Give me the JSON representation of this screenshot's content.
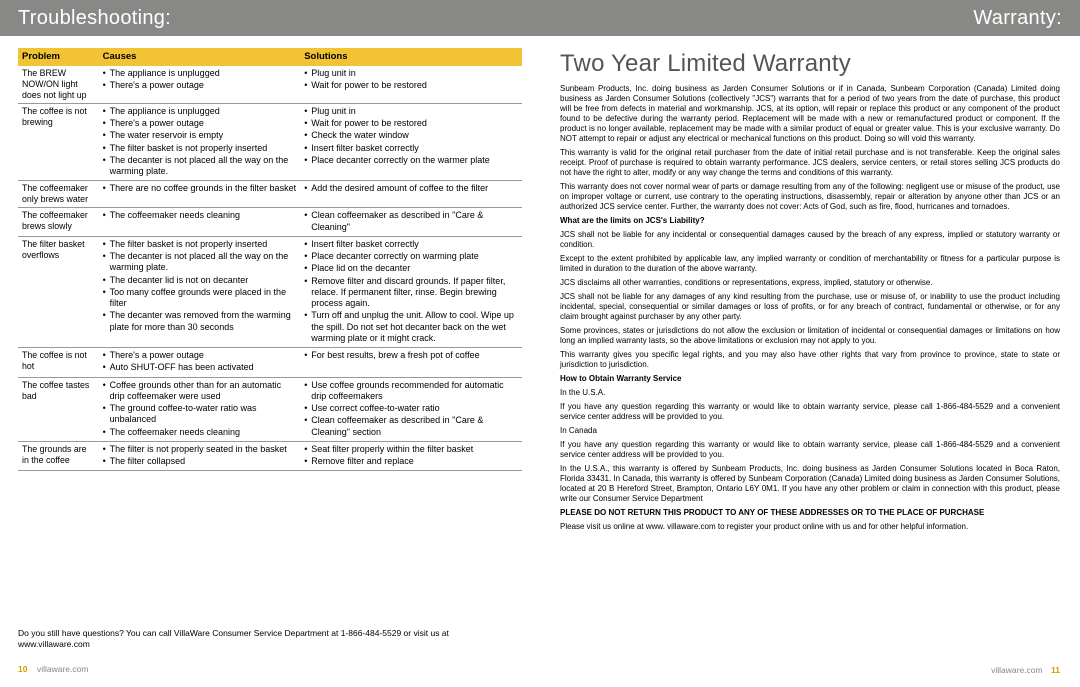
{
  "header_left": "Troubleshooting:",
  "header_right": "Warranty:",
  "table": {
    "cols": [
      "Problem",
      "Causes",
      "Solutions"
    ],
    "rows": [
      {
        "problem": "The BREW NOW/ON light does not light up",
        "causes": [
          "The appliance is unplugged",
          "There's a power outage"
        ],
        "solutions": [
          "Plug unit in",
          "Wait for power to be restored"
        ]
      },
      {
        "problem": "The coffee is not brewing",
        "causes": [
          "The appliance is unplugged",
          "There's a power outage",
          "The water reservoir is empty",
          "The filter basket is not properly inserted",
          "The decanter is not placed all the way on the warming plate."
        ],
        "solutions": [
          "Plug unit in",
          "Wait for power to be restored",
          "Check the water window",
          "Insert filter basket correctly",
          "Place decanter correctly on the warmer plate"
        ]
      },
      {
        "problem": "The coffeemaker only brews water",
        "causes": [
          "There are no coffee grounds in the filter basket"
        ],
        "solutions": [
          "Add the desired amount of coffee to the filter"
        ]
      },
      {
        "problem": "The coffeemaker brews slowly",
        "causes": [
          "The coffeemaker needs cleaning"
        ],
        "solutions": [
          "Clean coffeemaker as described in \"Care & Cleaning\""
        ]
      },
      {
        "problem": "The filter basket overflows",
        "causes": [
          "The filter basket is not properly inserted",
          "The decanter is not placed all the way on the warming plate.",
          "The decanter lid is not on decanter",
          "Too many coffee grounds were placed in the filter",
          "The decanter was removed from the warming plate for more than 30 seconds"
        ],
        "solutions": [
          "Insert filter basket correctly",
          "Place decanter correctly on warming plate",
          "Place lid on the decanter",
          "Remove filter and discard grounds. If paper filter, relace. If permanent filter, rinse. Begin brewing process again.",
          "Turn off and unplug the unit. Allow to cool. Wipe up the spill. Do not set hot decanter back on the wet warming plate or it might crack."
        ]
      },
      {
        "problem": "The coffee is not hot",
        "causes": [
          "There's a power outage",
          "Auto SHUT-OFF has been activated"
        ],
        "solutions": [
          "For best results, brew a fresh pot of coffee"
        ]
      },
      {
        "problem": "The coffee tastes bad",
        "causes": [
          "Coffee grounds other than for an automatic drip coffeemaker were used",
          "The ground coffee-to-water ratio was unbalanced",
          "The coffeemaker needs cleaning"
        ],
        "solutions": [
          "Use coffee grounds recommended for automatic drip coffeemakers",
          "Use correct coffee-to-water ratio",
          "Clean coffeemaker as described in \"Care & Cleaning\" section"
        ]
      },
      {
        "problem": "The grounds are in the coffee",
        "causes": [
          "The filter is not properly seated in the basket",
          "The filter collapsed"
        ],
        "solutions": [
          "Seat filter properly within the filter basket",
          "Remove filter and replace"
        ]
      }
    ]
  },
  "questions": "Do you still have questions? You can call VillaWare Consumer Service Department at 1-866-484-5529 or visit us at www.villaware.com",
  "left_page_num": "10",
  "left_website": "villaware.com",
  "warranty_title": "Two Year Limited Warranty",
  "warranty": {
    "p1": "Sunbeam Products, Inc. doing business as Jarden Consumer Solutions or if in Canada, Sunbeam Corporation (Canada) Limited doing business as Jarden Consumer Solutions (collectively \"JCS\") warrants that for a period of two years from the date of purchase, this product will be free from defects in material and workmanship. JCS, at its option, will repair or replace this product or any component of the product found to be defective during the warranty period. Replacement will be made with a new or remanufactured product or component. If the product is no longer available, replacement may be made with a similar product of equal or greater value. This is your exclusive warranty. Do NOT attempt to repair or adjust any electrical or mechanical functions on this product. Doing so will void this warranty.",
    "p2": "This warranty is valid for the original retail purchaser from the date of initial retail purchase and is not transferable. Keep the original sales receipt. Proof of purchase is required to obtain warranty performance. JCS dealers, service centers, or retail stores selling JCS products do not have the right to alter, modify or any way change the terms and conditions of this warranty.",
    "p3": "This warranty does not cover normal wear of parts or damage resulting from any of the following: negligent use or misuse of the product, use on improper voltage or current, use contrary to the operating instructions, disassembly, repair or alteration by anyone other than JCS or an authorized JCS service center. Further, the warranty does not cover: Acts of God, such as fire, flood, hurricanes and tornadoes.",
    "h1": "What are the limits on JCS's Liability?",
    "p4": "JCS shall not be liable for any incidental or consequential damages caused by the breach of any express, implied or statutory warranty or condition.",
    "p5": "Except to the extent prohibited by applicable law, any implied warranty or condition of merchantability or fitness for a particular purpose is limited in duration to the duration of the above warranty.",
    "p6": "JCS disclaims all other warranties, conditions or representations, express, implied, statutory or otherwise.",
    "p7": "JCS shall not be liable for any damages of any kind resulting from the purchase, use or misuse of, or inability to use the product including incidental, special, consequential or similar damages or loss of profits, or for any breach of contract, fundamental or otherwise, or for any claim brought against purchaser by any other party.",
    "p8": "Some provinces, states or jurisdictions do not allow the exclusion or limitation of incidental or consequential damages or limitations on how long an implied warranty lasts, so the above limitations or exclusion may not apply to you.",
    "p9": "This warranty gives you specific legal rights, and you may also have other rights that vary from province to province, state to state or jurisdiction to jurisdiction.",
    "h2": "How to Obtain Warranty Service",
    "p10": "In the U.S.A.",
    "p11": "If you have any question regarding this warranty or would like to obtain warranty service, please call 1-866-484-5529 and a convenient service center address will be provided to you.",
    "p12": "In Canada",
    "p13": "If you have any question regarding this warranty or would like to obtain warranty service, please call 1-866-484-5529 and a convenient service center address will be provided to you.",
    "p14": "In the U.S.A., this warranty is offered by Sunbeam Products, Inc. doing business as Jarden Consumer Solutions located in Boca Raton, Florida 33431. In Canada, this warranty is offered by Sunbeam Corporation (Canada) Limited doing business as Jarden Consumer Solutions, located at 20 B Hereford Street, Brampton, Ontario L6Y 0M1. If you have any other problem or claim in connection with this product, please write our Consumer Service Department",
    "h3": "PLEASE DO NOT RETURN THIS PRODUCT TO ANY OF THESE ADDRESSES OR TO THE PLACE OF PURCHASE",
    "p15": "Please visit us online at www. villaware.com to register your product online with us and for other helpful information."
  },
  "right_website": "villaware.com",
  "right_page_num": "11"
}
